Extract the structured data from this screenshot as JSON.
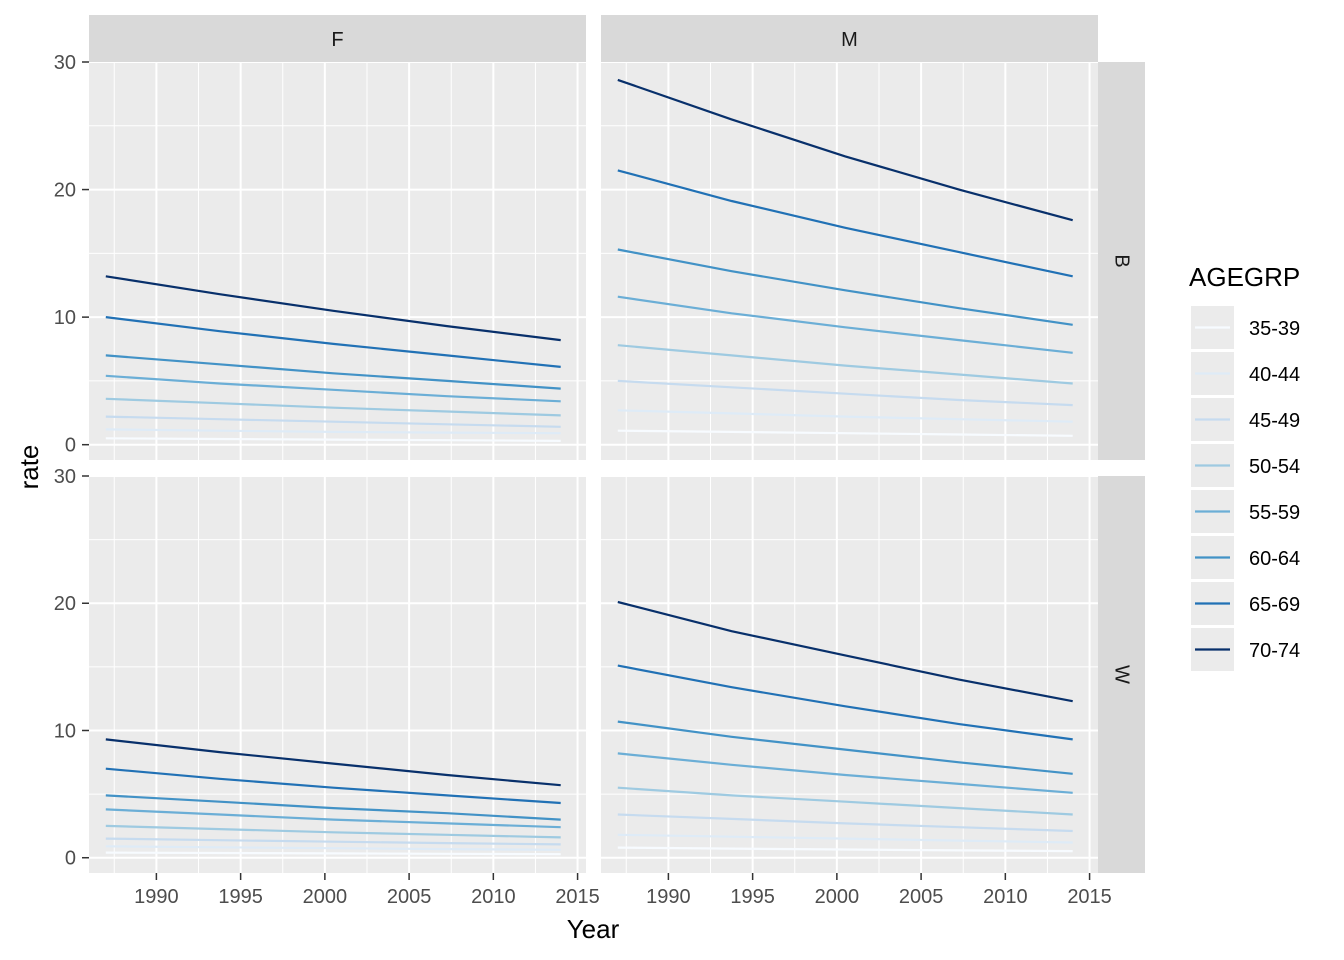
{
  "chart_data": {
    "type": "line",
    "xlabel": "Year",
    "ylabel": "rate",
    "xlim": [
      1986,
      2015.5
    ],
    "ylim": [
      -1.2,
      30
    ],
    "x_ticks": [
      1990,
      1995,
      2000,
      2005,
      2010,
      2015
    ],
    "y_ticks": [
      0,
      10,
      20,
      30
    ],
    "x": [
      1987,
      1993.75,
      2000.5,
      2007.25,
      2014
    ],
    "col_facets": [
      "F",
      "M"
    ],
    "row_facets": [
      "B",
      "W"
    ],
    "legend": {
      "title": "AGEGRP",
      "placement": "right",
      "entries": [
        "35-39",
        "40-44",
        "45-49",
        "50-54",
        "55-59",
        "60-64",
        "65-69",
        "70-74"
      ]
    },
    "colors": {
      "35-39": "#f7fbff",
      "40-44": "#deebf7",
      "45-49": "#c6dbef",
      "50-54": "#9ecae1",
      "55-59": "#6baed6",
      "60-64": "#4292c6",
      "65-69": "#2171b5",
      "70-74": "#08306b",
      "panel_bg": "#ebebeb",
      "strip_bg": "#d9d9d9",
      "grid": "#ffffff"
    },
    "panels": [
      {
        "col": "F",
        "row": "B",
        "series": [
          {
            "name": "35-39",
            "values": [
              0.5,
              0.45,
              0.4,
              0.35,
              0.3
            ]
          },
          {
            "name": "40-44",
            "values": [
              1.2,
              1.1,
              1.0,
              0.95,
              0.9
            ]
          },
          {
            "name": "45-49",
            "values": [
              2.2,
              2.0,
              1.8,
              1.6,
              1.4
            ]
          },
          {
            "name": "50-54",
            "values": [
              3.6,
              3.25,
              2.9,
              2.6,
              2.3
            ]
          },
          {
            "name": "55-59",
            "values": [
              5.4,
              4.8,
              4.3,
              3.8,
              3.4
            ]
          },
          {
            "name": "60-64",
            "values": [
              7.0,
              6.3,
              5.6,
              5.0,
              4.4
            ]
          },
          {
            "name": "65-69",
            "values": [
              10.0,
              8.9,
              7.9,
              7.0,
              6.1
            ]
          },
          {
            "name": "70-74",
            "values": [
              13.2,
              11.8,
              10.5,
              9.3,
              8.2
            ]
          }
        ]
      },
      {
        "col": "M",
        "row": "B",
        "series": [
          {
            "name": "35-39",
            "values": [
              1.1,
              1.0,
              0.9,
              0.8,
              0.7
            ]
          },
          {
            "name": "40-44",
            "values": [
              2.7,
              2.45,
              2.2,
              2.0,
              1.8
            ]
          },
          {
            "name": "45-49",
            "values": [
              5.0,
              4.5,
              4.0,
              3.5,
              3.1
            ]
          },
          {
            "name": "50-54",
            "values": [
              7.8,
              7.0,
              6.2,
              5.5,
              4.8
            ]
          },
          {
            "name": "55-59",
            "values": [
              11.6,
              10.3,
              9.2,
              8.2,
              7.2
            ]
          },
          {
            "name": "60-64",
            "values": [
              15.3,
              13.6,
              12.1,
              10.7,
              9.4
            ]
          },
          {
            "name": "65-69",
            "values": [
              21.5,
              19.1,
              17.0,
              15.1,
              13.2
            ]
          },
          {
            "name": "70-74",
            "values": [
              28.6,
              25.5,
              22.6,
              20.0,
              17.6
            ]
          }
        ]
      },
      {
        "col": "F",
        "row": "W",
        "series": [
          {
            "name": "35-39",
            "values": [
              0.4,
              0.37,
              0.34,
              0.31,
              0.28
            ]
          },
          {
            "name": "40-44",
            "values": [
              0.9,
              0.82,
              0.75,
              0.68,
              0.62
            ]
          },
          {
            "name": "45-49",
            "values": [
              1.5,
              1.38,
              1.26,
              1.15,
              1.05
            ]
          },
          {
            "name": "50-54",
            "values": [
              2.5,
              2.25,
              2.0,
              1.8,
              1.6
            ]
          },
          {
            "name": "55-59",
            "values": [
              3.8,
              3.4,
              3.0,
              2.7,
              2.4
            ]
          },
          {
            "name": "60-64",
            "values": [
              4.9,
              4.4,
              3.9,
              3.5,
              3.0
            ]
          },
          {
            "name": "65-69",
            "values": [
              7.0,
              6.2,
              5.5,
              4.9,
              4.3
            ]
          },
          {
            "name": "70-74",
            "values": [
              9.3,
              8.3,
              7.4,
              6.5,
              5.7
            ]
          }
        ]
      },
      {
        "col": "M",
        "row": "W",
        "series": [
          {
            "name": "35-39",
            "values": [
              0.8,
              0.72,
              0.65,
              0.58,
              0.52
            ]
          },
          {
            "name": "40-44",
            "values": [
              1.8,
              1.65,
              1.5,
              1.35,
              1.2
            ]
          },
          {
            "name": "45-49",
            "values": [
              3.4,
              3.05,
              2.7,
              2.4,
              2.1
            ]
          },
          {
            "name": "50-54",
            "values": [
              5.5,
              4.9,
              4.4,
              3.9,
              3.4
            ]
          },
          {
            "name": "55-59",
            "values": [
              8.2,
              7.3,
              6.5,
              5.8,
              5.1
            ]
          },
          {
            "name": "60-64",
            "values": [
              10.7,
              9.5,
              8.5,
              7.5,
              6.6
            ]
          },
          {
            "name": "65-69",
            "values": [
              15.1,
              13.4,
              11.9,
              10.5,
              9.3
            ]
          },
          {
            "name": "70-74",
            "values": [
              20.1,
              17.8,
              15.9,
              14.0,
              12.3
            ]
          }
        ]
      }
    ]
  }
}
